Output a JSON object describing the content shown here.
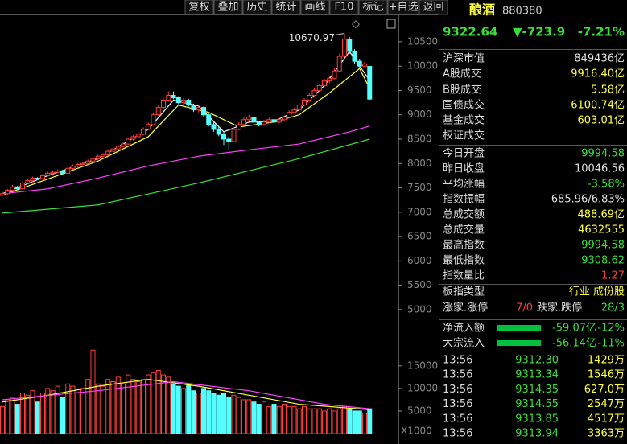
{
  "toolbar": [
    "复权",
    "叠加",
    "历史",
    "统计",
    "画线",
    "F10",
    "标记",
    "+自选",
    "返回"
  ],
  "chart_data": {
    "type": "candlestick",
    "ylim": [
      4420,
      11060
    ],
    "yticks": [
      5000,
      5500,
      6000,
      6500,
      7000,
      7500,
      8000,
      8500,
      9000,
      9500,
      10000,
      10500
    ],
    "max_annotation": 10670.97,
    "candles": [
      [
        7350,
        7420,
        7330,
        7380
      ],
      [
        7380,
        7480,
        7360,
        7450
      ],
      [
        7450,
        7560,
        7430,
        7520
      ],
      [
        7520,
        7540,
        7450,
        7480
      ],
      [
        7480,
        7630,
        7470,
        7600
      ],
      [
        7600,
        7680,
        7580,
        7650
      ],
      [
        7650,
        7730,
        7620,
        7700
      ],
      [
        7700,
        7720,
        7660,
        7690
      ],
      [
        7690,
        7780,
        7670,
        7750
      ],
      [
        7750,
        7830,
        7730,
        7800
      ],
      [
        7800,
        7860,
        7780,
        7820
      ],
      [
        7820,
        7880,
        7800,
        7850
      ],
      [
        7850,
        7870,
        7770,
        7800
      ],
      [
        7800,
        7930,
        7790,
        7900
      ],
      [
        7900,
        7980,
        7880,
        7950
      ],
      [
        7950,
        8010,
        7920,
        7980
      ],
      [
        7980,
        8040,
        7960,
        8000
      ],
      [
        8000,
        8080,
        7980,
        8050
      ],
      [
        8050,
        8420,
        8030,
        8100
      ],
      [
        8100,
        8180,
        8070,
        8150
      ],
      [
        8150,
        8210,
        8120,
        8180
      ],
      [
        8180,
        8280,
        8160,
        8250
      ],
      [
        8250,
        8330,
        8230,
        8300
      ],
      [
        8300,
        8380,
        8270,
        8350
      ],
      [
        8350,
        8430,
        8330,
        8400
      ],
      [
        8400,
        8530,
        8380,
        8500
      ],
      [
        8500,
        8580,
        8470,
        8550
      ],
      [
        8550,
        8640,
        8520,
        8600
      ],
      [
        8600,
        8740,
        8580,
        8700
      ],
      [
        8700,
        8840,
        8680,
        8800
      ],
      [
        8800,
        9050,
        8780,
        9000
      ],
      [
        9000,
        9200,
        8980,
        9150
      ],
      [
        9150,
        9350,
        9120,
        9300
      ],
      [
        9300,
        9480,
        9280,
        9400
      ],
      [
        9400,
        9480,
        9320,
        9350
      ],
      [
        9350,
        9380,
        9220,
        9250
      ],
      [
        9250,
        9340,
        9200,
        9300
      ],
      [
        9300,
        9330,
        9170,
        9200
      ],
      [
        9200,
        9230,
        9060,
        9100
      ],
      [
        9100,
        9200,
        9050,
        9150
      ],
      [
        9150,
        9170,
        8950,
        9000
      ],
      [
        9000,
        9030,
        8760,
        8800
      ],
      [
        8800,
        8850,
        8650,
        8700
      ],
      [
        8700,
        8760,
        8560,
        8600
      ],
      [
        8600,
        8640,
        8380,
        8500
      ],
      [
        8500,
        8560,
        8300,
        8450
      ],
      [
        8450,
        8740,
        8430,
        8700
      ],
      [
        8700,
        8850,
        8680,
        8800
      ],
      [
        8800,
        8950,
        8780,
        8900
      ],
      [
        8900,
        9000,
        8870,
        8950
      ],
      [
        8950,
        8980,
        8800,
        8850
      ],
      [
        8850,
        8880,
        8760,
        8800
      ],
      [
        8800,
        8890,
        8770,
        8850
      ],
      [
        8850,
        8940,
        8830,
        8900
      ],
      [
        8900,
        8920,
        8810,
        8850
      ],
      [
        8850,
        8930,
        8830,
        8900
      ],
      [
        8900,
        8990,
        8880,
        8950
      ],
      [
        8950,
        9090,
        8930,
        9050
      ],
      [
        9050,
        9140,
        9030,
        9100
      ],
      [
        9100,
        9240,
        9080,
        9200
      ],
      [
        9200,
        9340,
        9180,
        9300
      ],
      [
        9300,
        9440,
        9280,
        9400
      ],
      [
        9400,
        9540,
        9380,
        9500
      ],
      [
        9500,
        9640,
        9480,
        9600
      ],
      [
        9600,
        9740,
        9580,
        9700
      ],
      [
        9700,
        9800,
        9650,
        9750
      ],
      [
        9750,
        9950,
        9730,
        9900
      ],
      [
        9900,
        10260,
        9880,
        10200
      ],
      [
        10200,
        10670.97,
        10180,
        10550
      ],
      [
        10550,
        10600,
        10250,
        10300
      ],
      [
        10300,
        10350,
        10050,
        10100
      ],
      [
        10100,
        10150,
        9950,
        10000
      ],
      [
        10000,
        10090,
        9980,
        10046.56
      ],
      [
        9994.58,
        9994.58,
        9308.62,
        9322.64
      ]
    ],
    "up_color": "#ff3c3c",
    "down_color": "#54ffff",
    "ma_lines": [
      {
        "color": "#ffffff",
        "x": [
          0,
          9,
          19,
          29,
          34,
          39,
          44,
          49,
          54,
          59,
          64,
          69,
          73
        ],
        "values": [
          7380,
          7750,
          8100,
          8700,
          9300,
          9180,
          8650,
          8850,
          8870,
          9100,
          9600,
          10300,
          9707
        ]
      },
      {
        "color": "#ffff3c",
        "x": [
          0,
          9,
          19,
          29,
          35,
          41,
          47,
          54,
          59,
          65,
          71,
          73
        ],
        "values": [
          7350,
          7680,
          8050,
          8550,
          9200,
          9050,
          8750,
          8850,
          9000,
          9450,
          9950,
          9540
        ]
      },
      {
        "color": "#ff40ff",
        "x": [
          0,
          9,
          19,
          29,
          39,
          49,
          59,
          69,
          73
        ],
        "values": [
          7380,
          7480,
          7700,
          7950,
          8150,
          8280,
          8400,
          8650,
          8770
        ]
      },
      {
        "color": "#3cdc3c",
        "x": [
          0,
          19,
          39,
          59,
          73
        ],
        "values": [
          6982,
          7150,
          7600,
          8100,
          8500
        ]
      }
    ],
    "volume": {
      "unit_label": "X1000",
      "ylim": [
        0,
        20500
      ],
      "yticks": [
        5000,
        10000,
        15000
      ],
      "values": [
        6000,
        7500,
        8000,
        6500,
        9000,
        8500,
        9500,
        7000,
        9000,
        10000,
        9500,
        10500,
        8000,
        11000,
        10500,
        9000,
        10000,
        12000,
        18500,
        11000,
        10500,
        12000,
        11500,
        12500,
        11000,
        13000,
        12000,
        11500,
        12000,
        13000,
        13500,
        14000,
        13000,
        12500,
        11000,
        10500,
        10000,
        11000,
        9500,
        9000,
        10000,
        9500,
        9000,
        8500,
        9000,
        8000,
        8500,
        8000,
        7500,
        7500,
        7000,
        6500,
        7000,
        6000,
        6500,
        6000,
        6500,
        6000,
        6000,
        5500,
        6000,
        5500,
        5500,
        5500,
        5000,
        5500,
        5000,
        5500,
        6000,
        5500,
        5000,
        5000,
        4500,
        5500
      ],
      "ma_lines": [
        {
          "color": "#ffff3c",
          "x": [
            0,
            9,
            19,
            29,
            39,
            49,
            59,
            73
          ],
          "values": [
            7000,
            8500,
            10500,
            12000,
            10500,
            8500,
            6500,
            5300
          ]
        },
        {
          "color": "#ff40ff",
          "x": [
            0,
            19,
            34,
            49,
            64,
            73
          ],
          "values": [
            7500,
            9500,
            11500,
            9500,
            6500,
            5500
          ]
        }
      ]
    }
  },
  "quote": {
    "name": "酿酒",
    "code": "880380",
    "price": "9322.64",
    "change": "▼-723.9",
    "pct": "-7.21%"
  },
  "stats": [
    {
      "label": "沪深市值",
      "value": "849436亿",
      "color": "#e0e0e0"
    },
    {
      "label": "A股成交",
      "value": "9916.40亿",
      "color": "#ffff3c"
    },
    {
      "label": "B股成交",
      "value": "5.58亿",
      "color": "#ffff3c"
    },
    {
      "label": "国债成交",
      "value": "6100.74亿",
      "color": "#ffff3c"
    },
    {
      "label": "基金成交",
      "value": "603.01亿",
      "color": "#ffff3c"
    },
    {
      "label": "权证成交"
    },
    {
      "label": "今日开盘",
      "value": "9994.58",
      "color": "#3cdc3c"
    },
    {
      "label": "昨日收盘",
      "value": "10046.56",
      "color": "#e0e0e0"
    },
    {
      "label": "平均涨幅",
      "value": "-3.58%",
      "color": "#3cdc3c"
    },
    {
      "label": "指数振幅",
      "value": "685.96/6.83%",
      "color": "#e0e0e0"
    },
    {
      "label": "总成交额",
      "value": "488.69亿",
      "color": "#ffff3c"
    },
    {
      "label": "总成交量",
      "value": "4632555",
      "color": "#ffff3c"
    },
    {
      "label": "最高指数",
      "value": "9994.58",
      "color": "#3cdc3c"
    },
    {
      "label": "最低指数",
      "value": "9308.62",
      "color": "#3cdc3c"
    },
    {
      "label": "指数量比",
      "value": "1.27",
      "color": "#ff3c3c"
    }
  ],
  "board": {
    "label": "板指类型",
    "value": "行业 成份股"
  },
  "breadth": {
    "up_label": "涨家.涨停",
    "up": "7/0",
    "down_label": "跌家.跌停",
    "down": "28/3"
  },
  "flows": [
    {
      "label": "净流入额",
      "amount": "-59.07亿",
      "pct": "-12%"
    },
    {
      "label": "大宗流入",
      "amount": "-56.14亿",
      "pct": "-11%"
    }
  ],
  "ticks": [
    [
      "13:56",
      "9312.30",
      "1429万"
    ],
    [
      "13:56",
      "9313.34",
      "1546万"
    ],
    [
      "13:56",
      "9314.35",
      "627.0万"
    ],
    [
      "13:56",
      "9314.55",
      "2547万"
    ],
    [
      "13:56",
      "9313.85",
      "4517万"
    ],
    [
      "13:56",
      "9313.94",
      "3363万"
    ]
  ]
}
